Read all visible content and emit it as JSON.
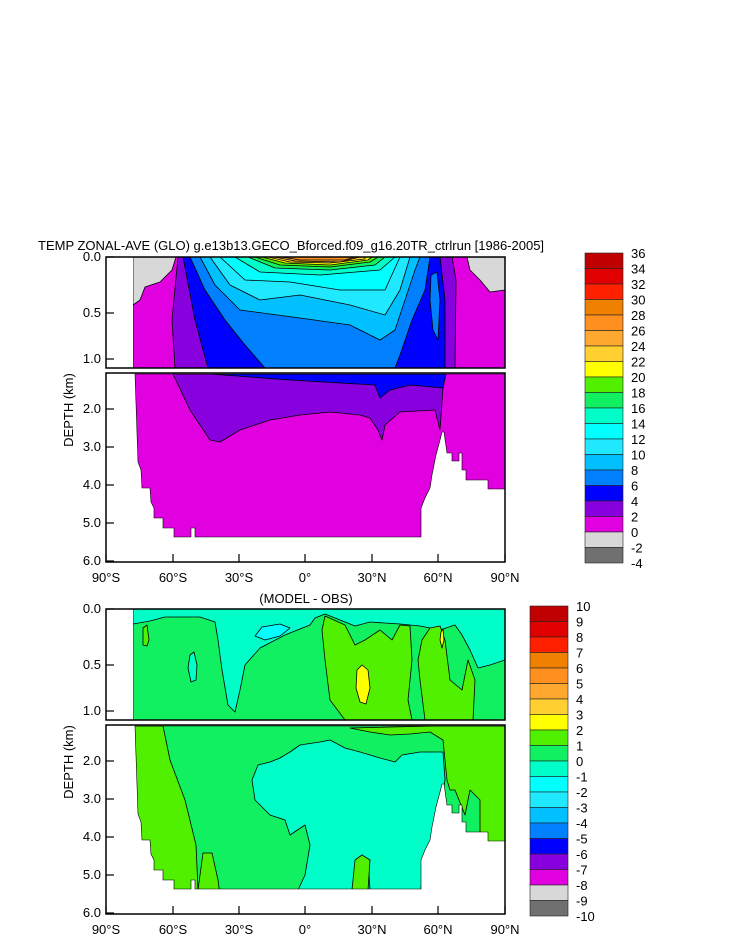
{
  "chart_data": [
    {
      "type": "heatmap",
      "subtype": "filled-contour",
      "title": "TEMP ZONAL-AVE (GLO) g.e13b13.GECO_Bforced.f09_g16.20TR_ctrlrun [1986-2005]",
      "xlabel": "",
      "ylabel": "DEPTH (km)",
      "xticks": [
        "90°S",
        "60°S",
        "30°S",
        "0°",
        "30°N",
        "60°N",
        "90°N"
      ],
      "xlim": [
        -90,
        90
      ],
      "yticks_upper": [
        "0.0",
        "0.5",
        "1.0"
      ],
      "yticks_lower": [
        "2.0",
        "3.0",
        "4.0",
        "5.0",
        "6.0"
      ],
      "ylim": [
        0,
        6
      ],
      "colorbar_labels": [
        "36",
        "34",
        "32",
        "30",
        "28",
        "26",
        "24",
        "22",
        "20",
        "18",
        "16",
        "14",
        "12",
        "10",
        "8",
        "6",
        "4",
        "2",
        "0",
        "-2",
        "-4"
      ],
      "levels": [
        36,
        34,
        32,
        30,
        28,
        26,
        24,
        22,
        20,
        18,
        16,
        14,
        12,
        10,
        8,
        6,
        4,
        2,
        0,
        -2,
        -4
      ],
      "legend_position": "right",
      "summary": {
        "surface_max_equator": 28,
        "deep_ocean": "0-2",
        "polar_surface": "-2-0"
      }
    },
    {
      "type": "heatmap",
      "subtype": "filled-contour",
      "title": "(MODEL - OBS)",
      "xlabel": "",
      "ylabel": "DEPTH (km)",
      "xticks": [
        "90°S",
        "60°S",
        "30°S",
        "0°",
        "30°N",
        "60°N",
        "90°N"
      ],
      "xlim": [
        -90,
        90
      ],
      "yticks_upper": [
        "0.0",
        "0.5",
        "1.0"
      ],
      "yticks_lower": [
        "2.0",
        "3.0",
        "4.0",
        "5.0",
        "6.0"
      ],
      "ylim": [
        0,
        6
      ],
      "colorbar_labels": [
        "10",
        "9",
        "8",
        "7",
        "6",
        "5",
        "4",
        "3",
        "2",
        "1",
        "0",
        "-1",
        "-2",
        "-3",
        "-4",
        "-5",
        "-6",
        "-7",
        "-8",
        "-9",
        "-10"
      ],
      "levels": [
        10,
        9,
        8,
        7,
        6,
        5,
        4,
        3,
        2,
        1,
        0,
        -1,
        -2,
        -3,
        -4,
        -5,
        -6,
        -7,
        -8,
        -9,
        -10
      ],
      "legend_position": "right",
      "summary": {
        "max_bias_near_30N_750m": 3,
        "deep_bias": "-1-0",
        "upper_bias": "0-2"
      }
    }
  ],
  "colors": [
    "#c00000",
    "#e00000",
    "#ff2000",
    "#f08000",
    "#ff9020",
    "#ffa830",
    "#ffd030",
    "#ffff00",
    "#50f000",
    "#10f060",
    "#00ffc8",
    "#00ffff",
    "#20e8ff",
    "#00c0ff",
    "#0080ff",
    "#0000ff",
    "#8800dd",
    "#e000e0",
    "#d8d8d8",
    "#707070"
  ]
}
